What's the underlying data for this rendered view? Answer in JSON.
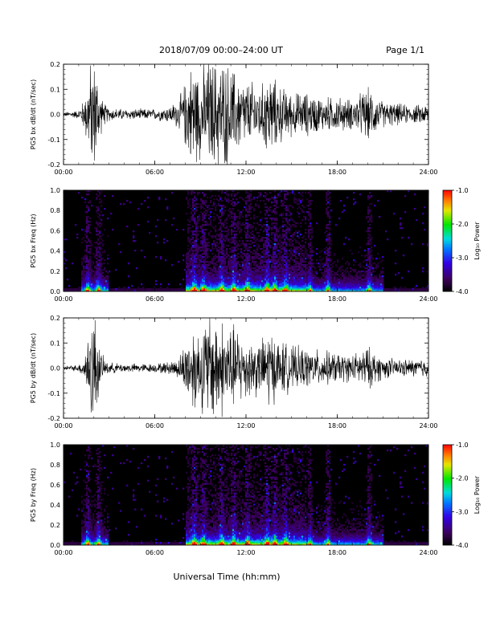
{
  "header": {
    "date_range": "2018/07/09   00:00–24:00 UT",
    "page": "Page 1/1"
  },
  "footer": {
    "xlabel": "Universal Time (hh:mm)"
  },
  "colorbar_label": "Log₁₀ Power",
  "chart_data": [
    {
      "type": "line",
      "ylabel": "PG5 bx dB/dt (nT/sec)",
      "ylim": [
        -0.2,
        0.2
      ],
      "yticks": [
        "0.2",
        "0.1",
        "0.0",
        "-0.1",
        "-0.2"
      ],
      "xlim": [
        0,
        24
      ],
      "xticks": [
        "00:00",
        "06:00",
        "12:00",
        "18:00",
        "24:00"
      ],
      "envelope": {
        "x": [
          0,
          1,
          1.4,
          1.8,
          2.1,
          2.4,
          2.7,
          3,
          4,
          5,
          6,
          7,
          7.6,
          8,
          8.5,
          9,
          9.5,
          10,
          10.5,
          11,
          11.5,
          12,
          12.5,
          13,
          13.5,
          14,
          14.5,
          15,
          16,
          17,
          18,
          19,
          20,
          21,
          22,
          23,
          24
        ],
        "amp": [
          0.01,
          0.02,
          0.08,
          0.25,
          0.25,
          0.1,
          0.05,
          0.03,
          0.025,
          0.025,
          0.025,
          0.04,
          0.07,
          0.15,
          0.25,
          0.2,
          0.25,
          0.25,
          0.25,
          0.22,
          0.18,
          0.15,
          0.15,
          0.13,
          0.2,
          0.15,
          0.12,
          0.1,
          0.1,
          0.08,
          0.08,
          0.07,
          0.12,
          0.06,
          0.05,
          0.04,
          0.05
        ]
      }
    },
    {
      "type": "heatmap",
      "ylabel": "PG5 bx Freq (Hz)",
      "ylim": [
        0,
        1
      ],
      "yticks": [
        "1.0",
        "0.8",
        "0.6",
        "0.4",
        "0.2",
        "0.0"
      ],
      "xlim": [
        0,
        24
      ],
      "xticks": [
        "00:00",
        "06:00",
        "12:00",
        "18:00",
        "24:00"
      ],
      "colorbar": {
        "range": [
          -4,
          -1
        ],
        "ticks": [
          "-1.0",
          "-2.0",
          "-3.0",
          "-4.0"
        ]
      }
    },
    {
      "type": "line",
      "ylabel": "PG5 by dB/dt (nT/sec)",
      "ylim": [
        -0.2,
        0.2
      ],
      "yticks": [
        "0.2",
        "0.1",
        "0.0",
        "-0.1",
        "-0.2"
      ],
      "xlim": [
        0,
        24
      ],
      "xticks": [
        "00:00",
        "06:00",
        "12:00",
        "18:00",
        "24:00"
      ],
      "envelope": {
        "x": [
          0,
          1,
          1.4,
          1.8,
          2.1,
          2.4,
          2.7,
          3,
          4,
          5,
          6,
          7,
          7.6,
          8,
          8.5,
          9,
          9.5,
          10,
          10.5,
          11,
          11.5,
          12,
          12.5,
          13,
          13.5,
          14,
          14.5,
          15,
          16,
          17,
          18,
          19,
          20,
          21,
          22,
          23,
          24
        ],
        "amp": [
          0.01,
          0.015,
          0.06,
          0.25,
          0.25,
          0.08,
          0.04,
          0.025,
          0.02,
          0.02,
          0.02,
          0.03,
          0.05,
          0.12,
          0.2,
          0.18,
          0.25,
          0.25,
          0.22,
          0.2,
          0.18,
          0.14,
          0.14,
          0.12,
          0.2,
          0.13,
          0.12,
          0.1,
          0.09,
          0.08,
          0.07,
          0.06,
          0.1,
          0.05,
          0.04,
          0.04,
          0.05
        ]
      }
    },
    {
      "type": "heatmap",
      "ylabel": "PG5 by Freq (Hz)",
      "ylim": [
        0,
        1
      ],
      "yticks": [
        "1.0",
        "0.8",
        "0.6",
        "0.4",
        "0.2",
        "0.0"
      ],
      "xlim": [
        0,
        24
      ],
      "xticks": [
        "00:00",
        "06:00",
        "12:00",
        "18:00",
        "24:00"
      ],
      "colorbar": {
        "range": [
          -4,
          -1
        ],
        "ticks": [
          "-1.0",
          "-2.0",
          "-3.0",
          "-4.0"
        ]
      }
    }
  ]
}
